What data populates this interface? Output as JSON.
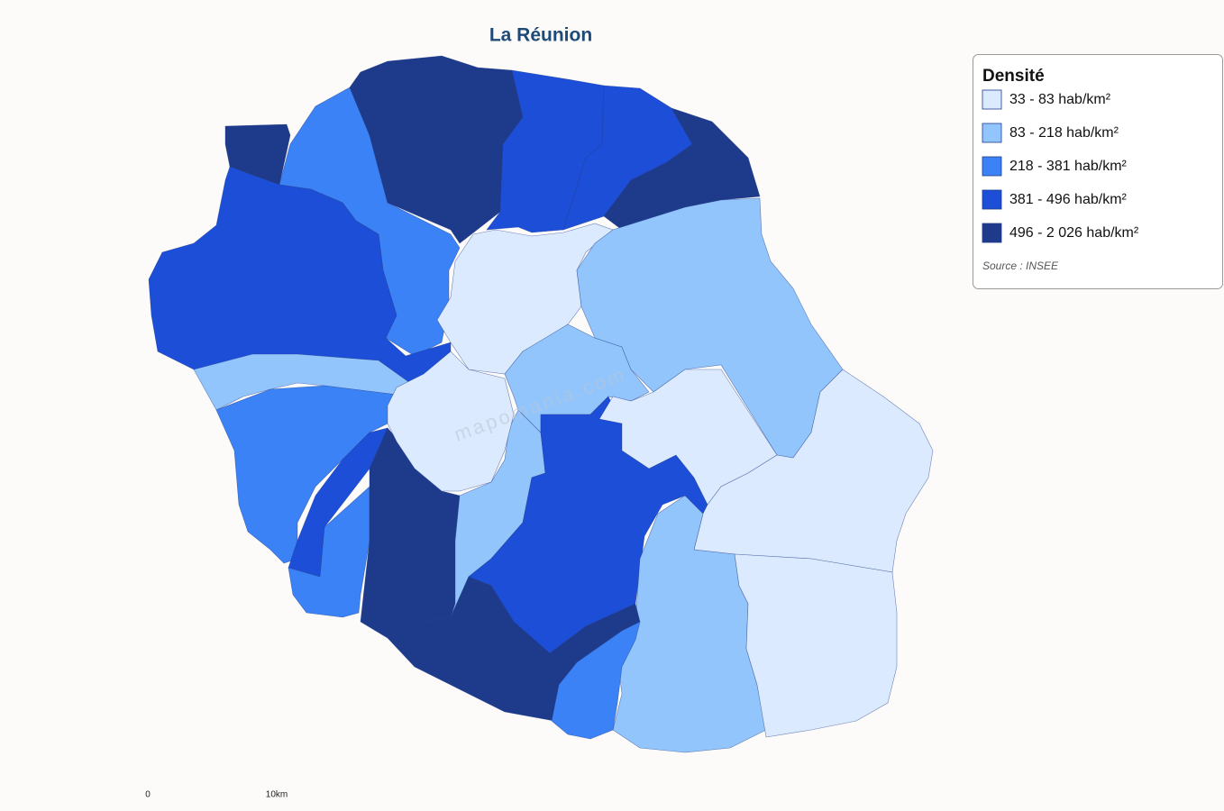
{
  "title": "La Réunion",
  "legend": {
    "title": "Densité",
    "items": [
      {
        "label": "33 - 83 hab/km²",
        "color": "#dbeafe"
      },
      {
        "label": "83 - 218 hab/km²",
        "color": "#93c5fd"
      },
      {
        "label": "218 - 381 hab/km²",
        "color": "#3b82f6"
      },
      {
        "label": "381 - 496 hab/km²",
        "color": "#1d4ed8"
      },
      {
        "label": "496 - 2 026 hab/km²",
        "color": "#1e3a8a"
      }
    ],
    "source": "Source : INSEE"
  },
  "scale": {
    "start": "0",
    "end": "10km"
  },
  "watermark": "mapomania.com"
}
